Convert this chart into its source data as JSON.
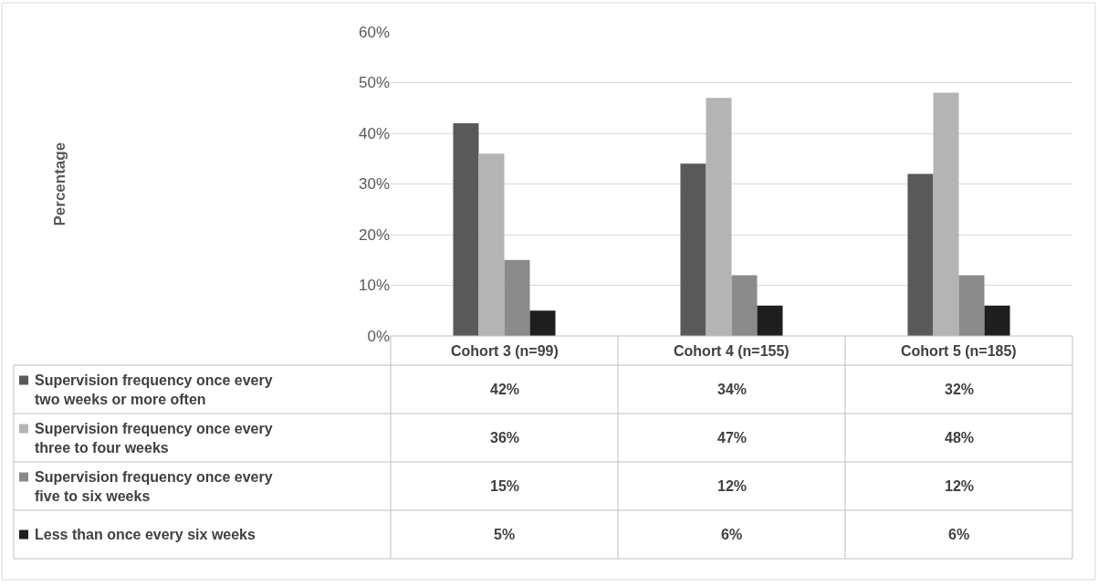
{
  "chart_data": {
    "type": "bar",
    "annotations": [
      "Percentage"
    ],
    "categories": [
      "Cohort 3 (n=99)",
      "Cohort 4 (n=155)",
      "Cohort 5 (n=185)"
    ],
    "series": [
      {
        "name": "Supervision frequency once every two weeks or more often",
        "color": "#595959",
        "values": [
          42,
          34,
          32
        ],
        "value_labels": [
          "42%",
          "34%",
          "32%"
        ]
      },
      {
        "name": "Supervision frequency once every three to four weeks",
        "color": "#b4b4b4",
        "values": [
          36,
          47,
          48
        ],
        "value_labels": [
          "36%",
          "47%",
          "48%"
        ]
      },
      {
        "name": "Supervision frequency once every five to six weeks",
        "color": "#8a8a8a",
        "values": [
          15,
          12,
          12
        ],
        "value_labels": [
          "15%",
          "12%",
          "12%"
        ]
      },
      {
        "name": "Less than once every six weeks",
        "color": "#1e1e1e",
        "values": [
          5,
          6,
          6
        ],
        "value_labels": [
          "5%",
          "6%",
          "6%"
        ]
      }
    ],
    "ylim": [
      0,
      60
    ],
    "yticks": [
      {
        "value": 0,
        "label": "0%"
      },
      {
        "value": 10,
        "label": "10%"
      },
      {
        "value": 20,
        "label": "20%"
      },
      {
        "value": 30,
        "label": "30%"
      },
      {
        "value": 40,
        "label": "40%"
      },
      {
        "value": 50,
        "label": "50%"
      },
      {
        "value": 60,
        "label": "60%"
      }
    ],
    "grid": "y",
    "legend": "bottom"
  }
}
